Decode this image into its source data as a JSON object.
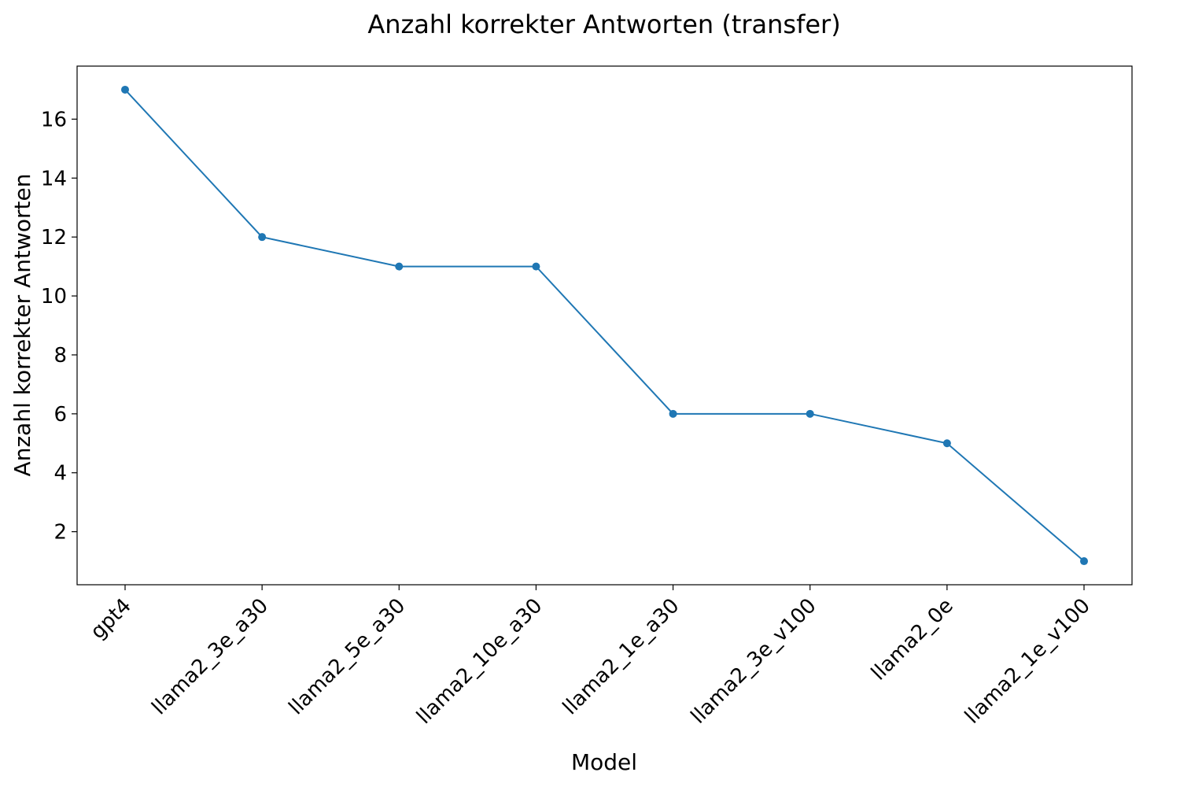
{
  "chart_data": {
    "type": "line",
    "title": "Anzahl korrekter Antworten (transfer)",
    "xlabel": "Model",
    "ylabel": "Anzahl korrekter Antworten",
    "categories": [
      "gpt4",
      "llama2_3e_a30",
      "llama2_5e_a30",
      "llama2_10e_a30",
      "llama2_1e_a30",
      "llama2_3e_v100",
      "llama2_0e",
      "llama2_1e_v100"
    ],
    "series": [
      {
        "values": [
          17,
          12,
          11,
          11,
          6,
          6,
          5,
          1
        ],
        "color": "#1f77b4"
      }
    ],
    "ylim": [
      0.2,
      17.8
    ],
    "yticks": [
      2,
      4,
      6,
      8,
      10,
      12,
      14,
      16
    ],
    "grid": false,
    "markers": true
  }
}
